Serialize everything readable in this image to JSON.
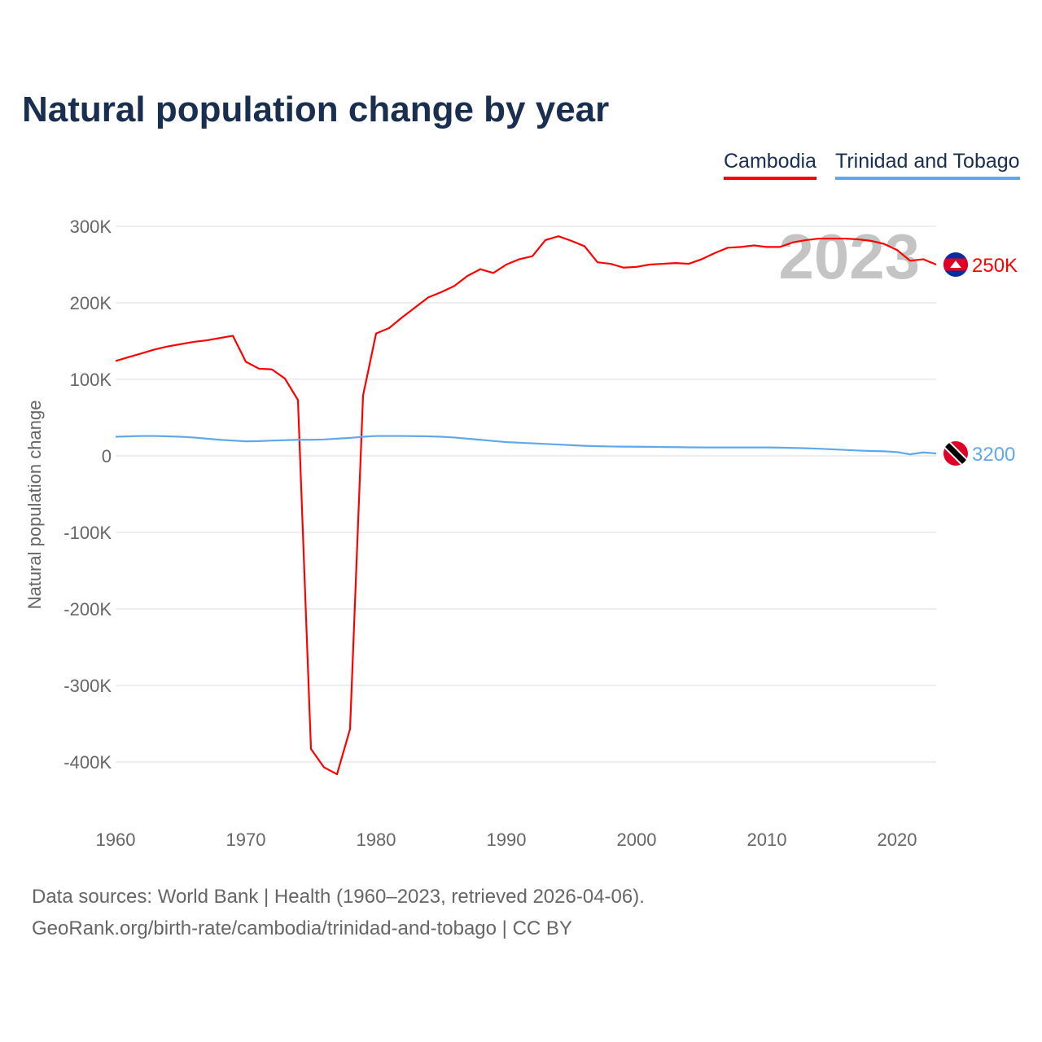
{
  "chart_data": {
    "type": "line",
    "title": "Natural population change by year",
    "xlabel": "",
    "ylabel": "Natural population change",
    "xlim": [
      1960,
      2023
    ],
    "ylim": [
      -450000,
      300000
    ],
    "yticks": [
      300000,
      200000,
      100000,
      0,
      -100000,
      -200000,
      -300000,
      -400000
    ],
    "ytick_labels": [
      "300K",
      "200K",
      "100K",
      "0",
      "-100K",
      "-200K",
      "-300K",
      "-400K"
    ],
    "xticks": [
      1960,
      1970,
      1980,
      1990,
      2000,
      2010,
      2020
    ],
    "xtick_labels": [
      "1960",
      "1970",
      "1980",
      "1990",
      "2000",
      "2010",
      "2020"
    ],
    "grid": true,
    "legend_position": "top-right",
    "year_watermark": "2023",
    "series": [
      {
        "name": "Cambodia",
        "color": "#ff0000",
        "end_label": "250K",
        "flag": "cambodia-flag",
        "x_start": 1960,
        "values": [
          124000,
          129000,
          134000,
          139000,
          143000,
          146000,
          149000,
          151000,
          154000,
          157000,
          123000,
          114000,
          113000,
          101000,
          73000,
          -383000,
          -407000,
          -416000,
          -357000,
          79000,
          160000,
          167000,
          181000,
          194000,
          207000,
          214000,
          222000,
          235000,
          244000,
          239000,
          250000,
          257000,
          261000,
          282000,
          287000,
          281000,
          274000,
          253000,
          251000,
          246000,
          247000,
          250000,
          251000,
          252000,
          251000,
          257000,
          265000,
          272000,
          273000,
          275000,
          273000,
          273000,
          279000,
          282000,
          284000,
          284000,
          284000,
          283000,
          281000,
          277000,
          269000,
          255000,
          257000,
          250000
        ]
      },
      {
        "name": "Trinidad and Tobago",
        "color": "#5fa8ec",
        "end_label": "3200",
        "flag": "trinidad-and-tobago-flag",
        "x_start": 1960,
        "values": [
          25000,
          25500,
          26000,
          26000,
          25500,
          25000,
          24000,
          22500,
          21000,
          20000,
          19000,
          19300,
          20000,
          20500,
          21000,
          21000,
          21500,
          22500,
          23500,
          25000,
          26000,
          26000,
          26000,
          25800,
          25500,
          25000,
          24000,
          22500,
          21000,
          19500,
          18000,
          17200,
          16400,
          15600,
          14800,
          14000,
          13200,
          12600,
          12300,
          12100,
          12000,
          11800,
          11600,
          11400,
          11200,
          11000,
          11000,
          11000,
          11000,
          11000,
          11000,
          10800,
          10400,
          10000,
          9400,
          8600,
          7800,
          7000,
          6400,
          6000,
          5000,
          2000,
          4500,
          3200
        ]
      }
    ]
  },
  "footer": {
    "line1": "Data sources: World Bank | Health (1960–2023, retrieved 2026-04-06).",
    "line2": "GeoRank.org/birth-rate/cambodia/trinidad-and-tobago | CC BY"
  }
}
